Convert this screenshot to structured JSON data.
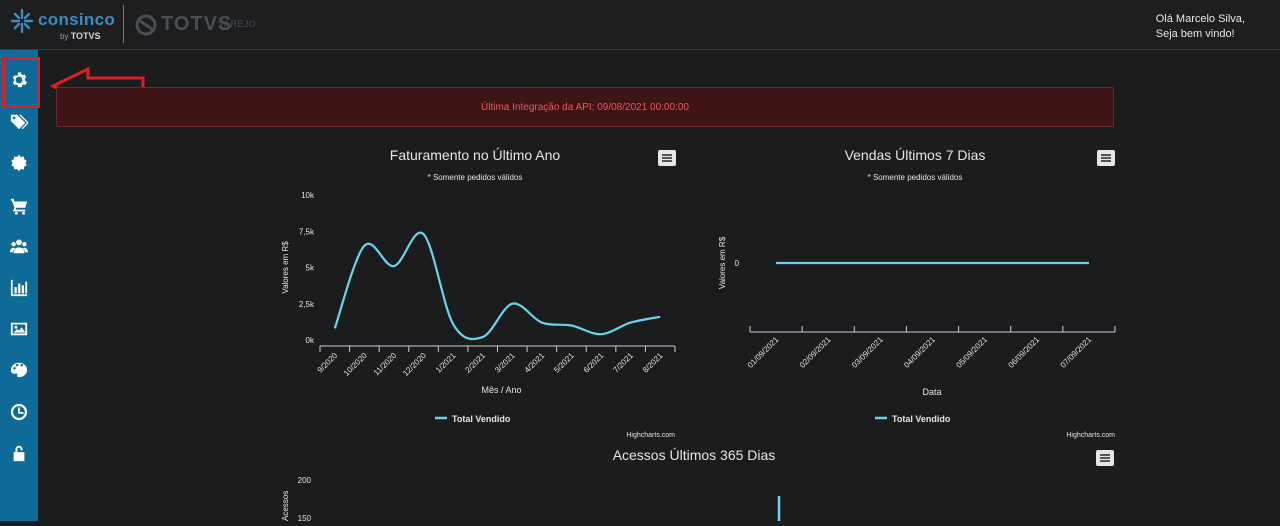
{
  "header": {
    "logo": {
      "brand": "consinco",
      "by": "by",
      "by_brand": "TOTVS"
    },
    "logo2": {
      "brand": "TOTVS",
      "sub": "VAREJO"
    },
    "greeting_line1": "Olá Marcelo Silva,",
    "greeting_line2": "Seja bem vindo!"
  },
  "sidebar": {
    "items": [
      {
        "icon": "gear-icon"
      },
      {
        "icon": "tags-icon"
      },
      {
        "icon": "badge-icon"
      },
      {
        "icon": "cart-icon"
      },
      {
        "icon": "users-icon"
      },
      {
        "icon": "bar-chart-icon"
      },
      {
        "icon": "image-icon"
      },
      {
        "icon": "palette-icon"
      },
      {
        "icon": "clock-icon"
      },
      {
        "icon": "unlock-icon"
      }
    ]
  },
  "alert": {
    "text": "Última Integração da API: 09/08/2021 00:00:00"
  },
  "colors": {
    "sidebar": "#0e6a96",
    "series": "#6ad4ec",
    "alert_text": "#e85a5a",
    "annotation": "#e01e26"
  },
  "credit": "Highcharts.com",
  "chart_data": [
    {
      "type": "line",
      "title": "Faturamento no Último Ano",
      "subtitle": "* Somente pedidos válidos",
      "xlabel": "Mês / Ano",
      "ylabel": "Valores em R$",
      "categories": [
        "9/2020",
        "10/2020",
        "11/2020",
        "12/2020",
        "1/2021",
        "2/2021",
        "3/2021",
        "4/2021",
        "5/2021",
        "6/2021",
        "7/2021",
        "8/2021"
      ],
      "yticks": [
        "0k",
        "2,5k",
        "5k",
        "7,5k",
        "10k"
      ],
      "ylim": [
        0,
        10000
      ],
      "series": [
        {
          "name": "Total Vendido",
          "values": [
            800,
            6500,
            5100,
            7300,
            1100,
            200,
            2500,
            1200,
            1000,
            400,
            1200,
            1600
          ]
        }
      ],
      "legend": "bottom-center"
    },
    {
      "type": "line",
      "title": "Vendas Últimos 7 Dias",
      "subtitle": "* Somente pedidos válidos",
      "xlabel": "Data",
      "ylabel": "Valores em R$",
      "categories": [
        "01/09/2021",
        "02/09/2021",
        "03/09/2021",
        "04/09/2021",
        "05/09/2021",
        "06/09/2021",
        "07/09/2021"
      ],
      "yticks": [
        "0"
      ],
      "series": [
        {
          "name": "Total Vendido",
          "values": [
            0,
            0,
            0,
            0,
            0,
            0,
            0
          ]
        }
      ],
      "legend": "bottom-center"
    },
    {
      "type": "line",
      "title": "Acessos Últimos 365 Dias",
      "ylabel": "Acessos",
      "yticks": [
        "150",
        "200"
      ]
    }
  ]
}
